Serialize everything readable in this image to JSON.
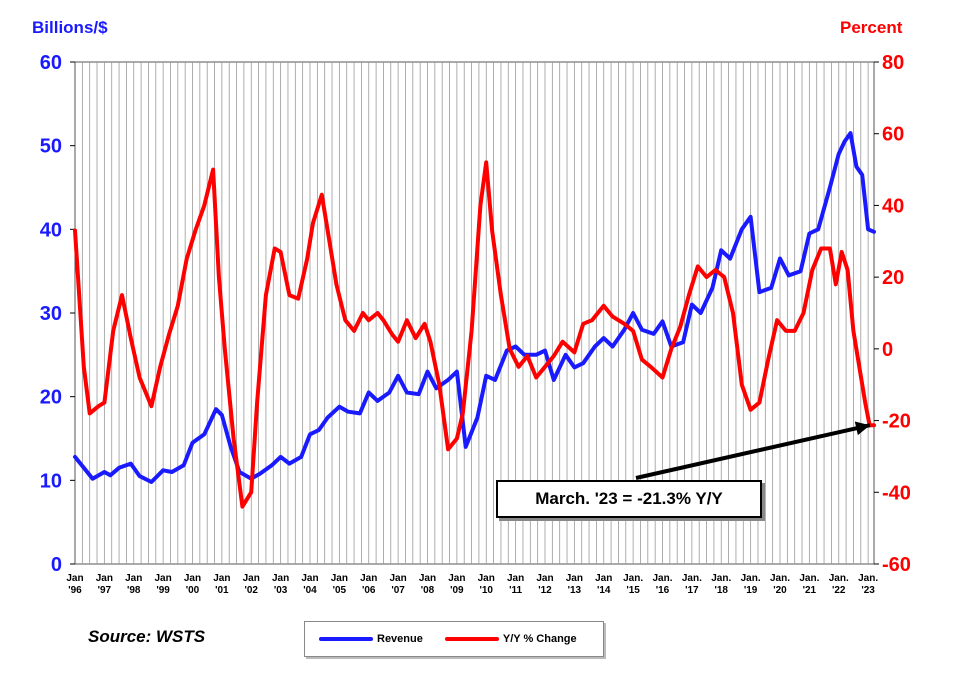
{
  "chart_data": {
    "type": "line",
    "title": "",
    "left_axis": {
      "label": "Billions/$",
      "range": [
        0,
        60
      ],
      "ticks": [
        0,
        10,
        20,
        30,
        40,
        50,
        60
      ],
      "color": "#1a1aff"
    },
    "right_axis": {
      "label": "Percent",
      "range": [
        -60,
        80
      ],
      "ticks": [
        -60,
        -40,
        -20,
        0,
        20,
        40,
        60,
        80
      ],
      "color": "#ff0000"
    },
    "x_range": [
      1996.0,
      2023.2
    ],
    "x_labels": [
      {
        "x": 1996,
        "top": "Jan",
        "bottom": "'96"
      },
      {
        "x": 1997,
        "top": "Jan",
        "bottom": "'97"
      },
      {
        "x": 1998,
        "top": "Jan",
        "bottom": "'98"
      },
      {
        "x": 1999,
        "top": "Jan",
        "bottom": "'99"
      },
      {
        "x": 2000,
        "top": "Jan",
        "bottom": "'00"
      },
      {
        "x": 2001,
        "top": "Jan",
        "bottom": "'01"
      },
      {
        "x": 2002,
        "top": "Jan",
        "bottom": "'02"
      },
      {
        "x": 2003,
        "top": "Jan",
        "bottom": "'03"
      },
      {
        "x": 2004,
        "top": "Jan",
        "bottom": "'04"
      },
      {
        "x": 2005,
        "top": "Jan",
        "bottom": "'05"
      },
      {
        "x": 2006,
        "top": "Jan",
        "bottom": "'06"
      },
      {
        "x": 2007,
        "top": "Jan",
        "bottom": "'07"
      },
      {
        "x": 2008,
        "top": "Jan",
        "bottom": "'08"
      },
      {
        "x": 2009,
        "top": "Jan",
        "bottom": "'09"
      },
      {
        "x": 2010,
        "top": "Jan",
        "bottom": "'10"
      },
      {
        "x": 2011,
        "top": "Jan",
        "bottom": "'11"
      },
      {
        "x": 2012,
        "top": "Jan",
        "bottom": "'12"
      },
      {
        "x": 2013,
        "top": "Jan",
        "bottom": "'13"
      },
      {
        "x": 2014,
        "top": "Jan",
        "bottom": "'14"
      },
      {
        "x": 2015,
        "top": "Jan.",
        "bottom": "'15"
      },
      {
        "x": 2016,
        "top": "Jan.",
        "bottom": "'16"
      },
      {
        "x": 2017,
        "top": "Jan.",
        "bottom": "'17"
      },
      {
        "x": 2018,
        "top": "Jan.",
        "bottom": "'18"
      },
      {
        "x": 2019,
        "top": "Jan.",
        "bottom": "'19"
      },
      {
        "x": 2020,
        "top": "Jan.",
        "bottom": "'20"
      },
      {
        "x": 2021,
        "top": "Jan.",
        "bottom": "'21"
      },
      {
        "x": 2022,
        "top": "Jan.",
        "bottom": "'22"
      },
      {
        "x": 2023,
        "top": "Jan.",
        "bottom": "'23"
      }
    ],
    "grid": "vertical",
    "series": [
      {
        "name": "Revenue",
        "axis": "left",
        "color": "#1a1aff",
        "x": [
          1996.0,
          1996.3,
          1996.6,
          1997.0,
          1997.2,
          1997.5,
          1997.9,
          1998.2,
          1998.6,
          1999.0,
          1999.3,
          1999.7,
          2000.0,
          2000.4,
          2000.8,
          2001.0,
          2001.3,
          2001.6,
          2002.0,
          2002.3,
          2002.7,
          2003.0,
          2003.3,
          2003.7,
          2004.0,
          2004.3,
          2004.6,
          2005.0,
          2005.3,
          2005.7,
          2006.0,
          2006.3,
          2006.7,
          2007.0,
          2007.3,
          2007.7,
          2008.0,
          2008.3,
          2008.7,
          2009.0,
          2009.3,
          2009.7,
          2010.0,
          2010.3,
          2010.7,
          2011.0,
          2011.3,
          2011.7,
          2012.0,
          2012.3,
          2012.7,
          2013.0,
          2013.3,
          2013.7,
          2014.0,
          2014.3,
          2014.7,
          2015.0,
          2015.3,
          2015.7,
          2016.0,
          2016.3,
          2016.7,
          2017.0,
          2017.3,
          2017.7,
          2018.0,
          2018.3,
          2018.7,
          2019.0,
          2019.3,
          2019.7,
          2020.0,
          2020.3,
          2020.7,
          2021.0,
          2021.3,
          2021.7,
          2022.0,
          2022.2,
          2022.4,
          2022.6,
          2022.8,
          2023.0,
          2023.2
        ],
        "y": [
          12.8,
          11.5,
          10.2,
          11.0,
          10.6,
          11.5,
          12.0,
          10.5,
          9.8,
          11.2,
          11.0,
          11.8,
          14.5,
          15.5,
          18.5,
          17.8,
          14.0,
          11.0,
          10.2,
          10.8,
          11.8,
          12.8,
          12.0,
          12.8,
          15.5,
          16.0,
          17.5,
          18.8,
          18.2,
          18.0,
          20.5,
          19.5,
          20.5,
          22.5,
          20.5,
          20.3,
          23.0,
          21.0,
          22.0,
          23.0,
          14.0,
          17.5,
          22.5,
          22.0,
          25.5,
          26.0,
          25.0,
          25.0,
          25.5,
          22.0,
          25.0,
          23.5,
          24.0,
          26.0,
          27.0,
          26.0,
          28.0,
          30.0,
          28.0,
          27.5,
          29.0,
          26.0,
          26.5,
          31.0,
          30.0,
          33.0,
          37.5,
          36.5,
          40.0,
          41.5,
          32.5,
          33.0,
          36.5,
          34.5,
          35.0,
          39.5,
          40.0,
          45.0,
          49.0,
          50.5,
          51.5,
          47.5,
          46.5,
          40.0,
          39.7
        ]
      },
      {
        "name": "Y/Y % Change",
        "axis": "right",
        "color": "#ff0000",
        "x": [
          1996.0,
          1996.3,
          1996.5,
          1996.8,
          1997.0,
          1997.3,
          1997.6,
          1997.9,
          1998.2,
          1998.6,
          1998.9,
          1999.2,
          1999.5,
          1999.8,
          2000.1,
          2000.4,
          2000.7,
          2000.9,
          2001.1,
          2001.4,
          2001.7,
          2002.0,
          2002.2,
          2002.5,
          2002.8,
          2003.0,
          2003.3,
          2003.6,
          2003.9,
          2004.1,
          2004.4,
          2004.7,
          2004.9,
          2005.2,
          2005.5,
          2005.8,
          2006.0,
          2006.3,
          2006.5,
          2006.8,
          2007.0,
          2007.3,
          2007.6,
          2007.9,
          2008.1,
          2008.4,
          2008.7,
          2009.0,
          2009.2,
          2009.5,
          2009.8,
          2010.0,
          2010.2,
          2010.5,
          2010.8,
          2011.1,
          2011.4,
          2011.7,
          2012.0,
          2012.3,
          2012.6,
          2013.0,
          2013.3,
          2013.6,
          2014.0,
          2014.3,
          2014.7,
          2015.0,
          2015.3,
          2015.6,
          2016.0,
          2016.3,
          2016.6,
          2016.9,
          2017.2,
          2017.5,
          2017.8,
          2018.1,
          2018.4,
          2018.7,
          2019.0,
          2019.3,
          2019.6,
          2019.9,
          2020.2,
          2020.5,
          2020.8,
          2021.1,
          2021.4,
          2021.7,
          2021.9,
          2022.1,
          2022.3,
          2022.5,
          2022.7,
          2022.9,
          2023.05,
          2023.2
        ],
        "y": [
          33,
          -5,
          -18,
          -16,
          -15,
          5,
          15,
          3,
          -8,
          -16,
          -5,
          4,
          12,
          25,
          33,
          40,
          50,
          20,
          0,
          -25,
          -44,
          -40,
          -15,
          15,
          28,
          27,
          15,
          14,
          25,
          35,
          43,
          28,
          18,
          8,
          5,
          10,
          8,
          10,
          8,
          4,
          2,
          8,
          3,
          7,
          2,
          -10,
          -28,
          -25,
          -18,
          5,
          40,
          52,
          33,
          15,
          0,
          -5,
          -2,
          -8,
          -5,
          -2,
          2,
          -1,
          7,
          8,
          12,
          9,
          7,
          5,
          -3,
          -5,
          -8,
          0,
          6,
          15,
          23,
          20,
          22,
          20,
          10,
          -10,
          -17,
          -15,
          -3,
          8,
          5,
          5,
          10,
          22,
          28,
          28,
          18,
          27,
          22,
          5,
          -5,
          -15,
          -21.3,
          -21.3
        ]
      }
    ],
    "annotation": {
      "text": "March. '23 = -21.3% Y/Y",
      "points_to": {
        "x": 2023.2,
        "y": -21.3
      }
    },
    "source": "Source: WSTS",
    "legend": {
      "position": "bottom-center"
    }
  }
}
